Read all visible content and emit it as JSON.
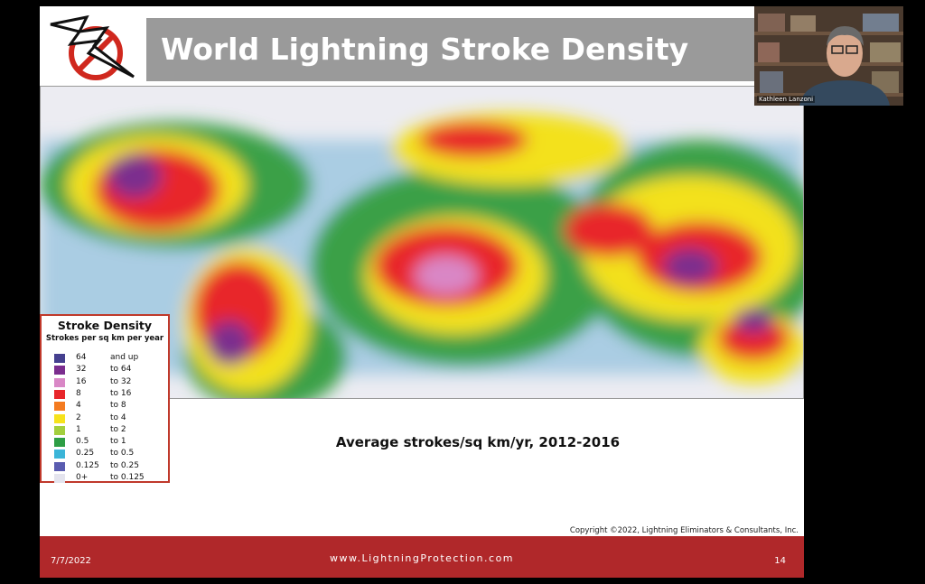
{
  "slide": {
    "title": "World Lightning Stroke Density",
    "caption": "Average strokes/sq km/yr, 2012-2016",
    "copyright": "Copyright ©2022, Lightning Eliminators & Consultants, Inc.",
    "footer": {
      "date": "7/7/2022",
      "url": "www.LightningProtection.com",
      "page": "14"
    }
  },
  "legend": {
    "title": "Stroke Density",
    "subtitle": "Strokes per sq km per year",
    "rows": [
      {
        "from": "64",
        "to": "and up",
        "color": "#45408f"
      },
      {
        "from": "32",
        "to": "to 64",
        "color": "#7b2d8e"
      },
      {
        "from": "16",
        "to": "to 32",
        "color": "#d987c6"
      },
      {
        "from": "8",
        "to": "to 16",
        "color": "#e8262b"
      },
      {
        "from": "4",
        "to": "to 8",
        "color": "#f47b20"
      },
      {
        "from": "2",
        "to": "to 4",
        "color": "#f6e21c"
      },
      {
        "from": "1",
        "to": "to 2",
        "color": "#a3cf3d"
      },
      {
        "from": "0.5",
        "to": "to 1",
        "color": "#2e9e45"
      },
      {
        "from": "0.25",
        "to": "to 0.5",
        "color": "#3bb5d8"
      },
      {
        "from": "0.125",
        "to": "to 0.25",
        "color": "#5a5cb0"
      },
      {
        "from": "0+",
        "to": "to 0.125",
        "color": "#e4e4ee"
      }
    ]
  },
  "video": {
    "participant": "Kathleen Lanzoni"
  }
}
